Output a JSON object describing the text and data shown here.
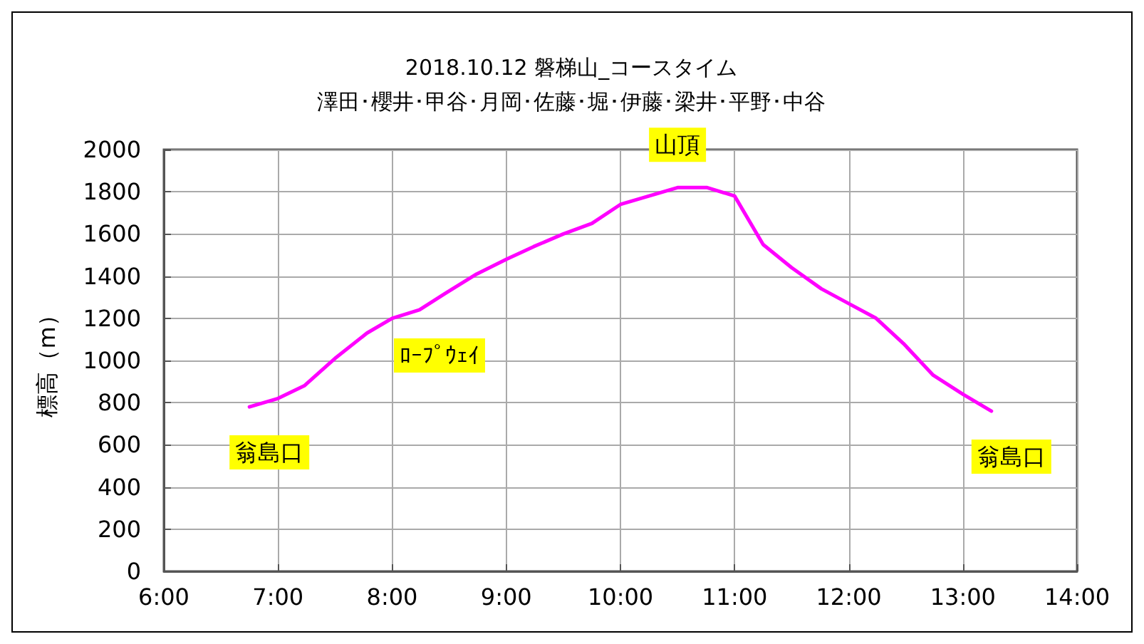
{
  "chart_data": {
    "type": "line",
    "title": "2018.10.12 磐梯山_コースタイム",
    "subtitle": "澤田･櫻井･甲谷･月岡･佐藤･堀･伊藤･梁井･平野･中谷",
    "ylabel": "標高（m）",
    "x": [
      6.75,
      7.0,
      7.23,
      7.5,
      7.78,
      8.0,
      8.24,
      8.47,
      8.74,
      9.0,
      9.24,
      9.5,
      9.75,
      10.0,
      10.25,
      10.5,
      10.76,
      11.0,
      11.25,
      11.5,
      11.76,
      12.0,
      12.24,
      12.48,
      12.74,
      13.0,
      13.25
    ],
    "series": [
      {
        "color": "#ff00ff",
        "values": [
          780,
          820,
          880,
          1010,
          1130,
          1200,
          1240,
          1320,
          1410,
          1480,
          1540,
          1600,
          1650,
          1740,
          1780,
          1820,
          1820,
          1780,
          1550,
          1440,
          1340,
          1270,
          1200,
          1080,
          930,
          840,
          760
        ]
      }
    ],
    "xlim": [
      6,
      14
    ],
    "xticks": [
      {
        "value": 6,
        "label": "6:00"
      },
      {
        "value": 7,
        "label": "7:00"
      },
      {
        "value": 8,
        "label": "8:00"
      },
      {
        "value": 9,
        "label": "9:00"
      },
      {
        "value": 10,
        "label": "10:00"
      },
      {
        "value": 11,
        "label": "11:00"
      },
      {
        "value": 12,
        "label": "12:00"
      },
      {
        "value": 13,
        "label": "13:00"
      },
      {
        "value": 14,
        "label": "14:00"
      }
    ],
    "ylim": [
      0,
      2000
    ],
    "yticks": [
      0,
      200,
      400,
      600,
      800,
      1000,
      1200,
      1400,
      1600,
      1800,
      2000
    ],
    "annotations": [
      {
        "text": "山頂",
        "x": 10.5,
        "y": 1820
      },
      {
        "text": "ﾛｰﾌﾟｳｪｲ",
        "x": 8.24,
        "y": 1240
      },
      {
        "text": "翁島口",
        "x": 6.75,
        "y": 780
      },
      {
        "text": "翁島口",
        "x": 13.25,
        "y": 760
      }
    ],
    "grid": true,
    "marker": "none",
    "line_style": "solid"
  }
}
